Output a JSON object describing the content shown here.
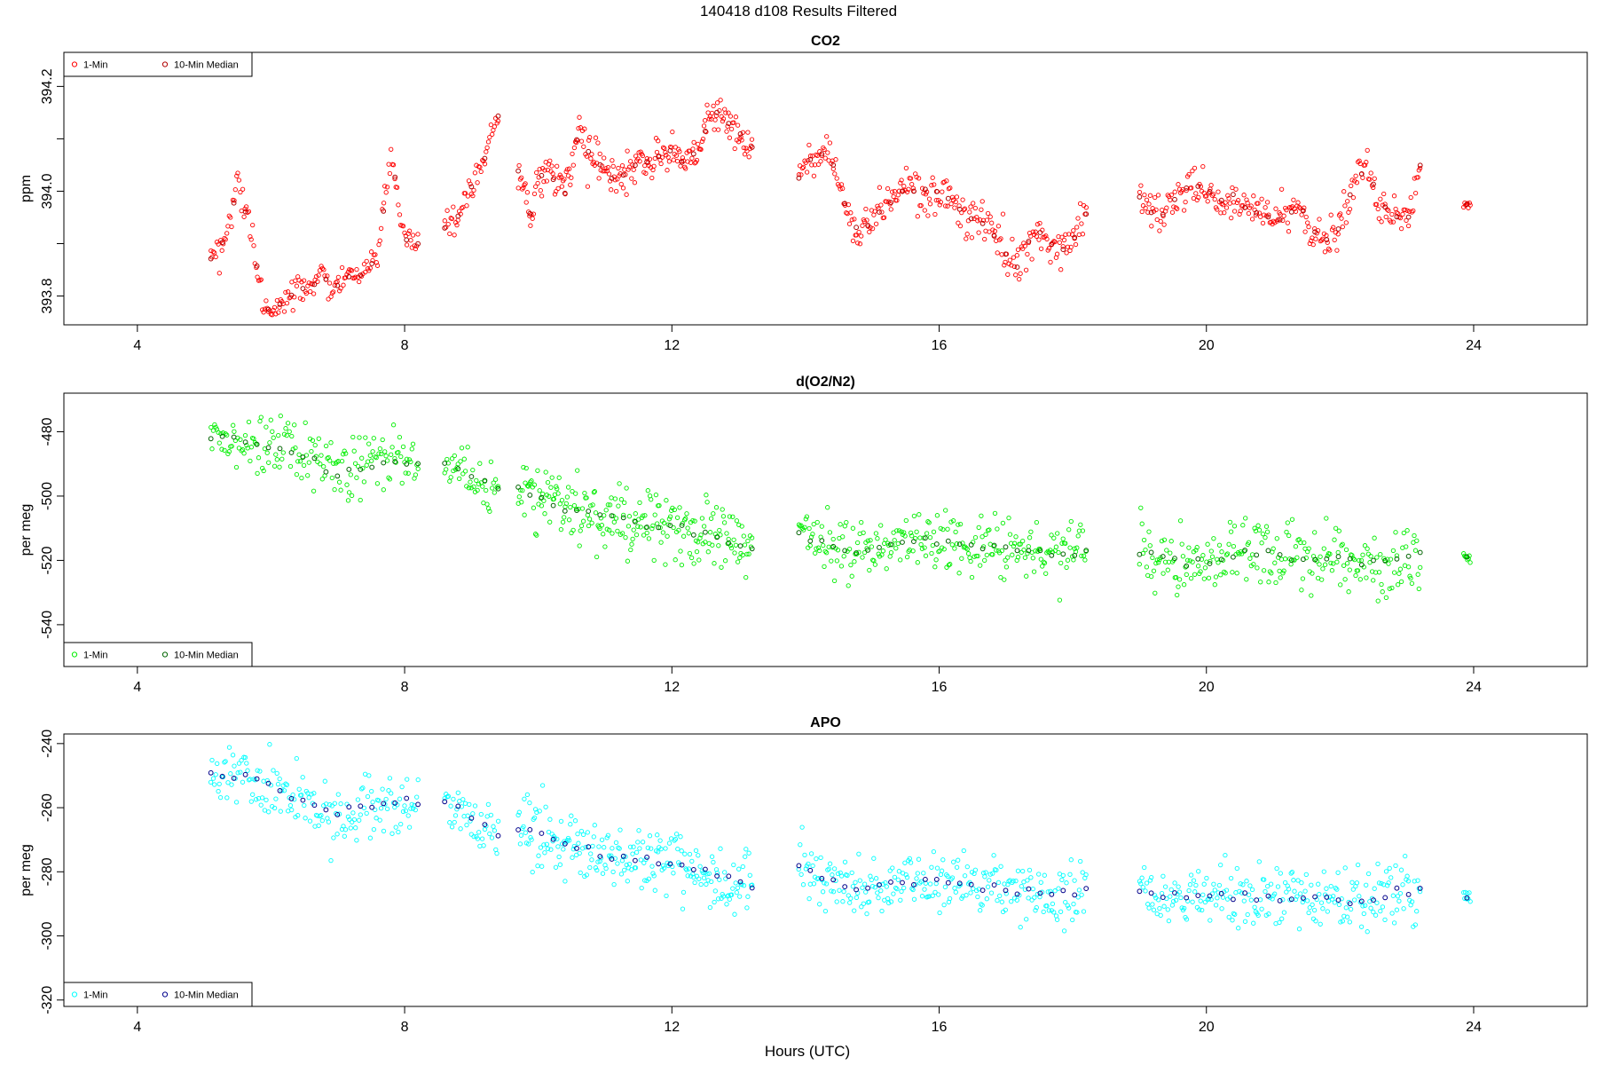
{
  "figure": {
    "title": "140418   d108   Results Filtered",
    "xlabel": "Hours (UTC)"
  },
  "chart_data": [
    {
      "type": "scatter",
      "title": "CO2",
      "ylabel": "ppm",
      "xlim": [
        2.9,
        25.7
      ],
      "ylim": [
        393.745,
        394.265
      ],
      "x_ticks": [
        4,
        8,
        12,
        16,
        20,
        24
      ],
      "x_tick_labels": [
        "4",
        "8",
        "12",
        "16",
        "20",
        "24"
      ],
      "y_ticks": [
        393.8,
        393.9,
        394.0,
        394.1,
        394.2
      ],
      "y_tick_labels": [
        "393.8",
        "",
        "394.0",
        "",
        "394.2"
      ],
      "legend": {
        "position": "top-left",
        "entries": [
          "1-Min",
          "10-Min Median"
        ]
      },
      "series": [
        {
          "name": "1-Min",
          "color": "#ff0000"
        },
        {
          "name": "10-Min Median",
          "color": "#b00000"
        }
      ],
      "segments": [
        {
          "x": [
            5.1,
            8.2
          ],
          "points": [
            [
              5.1,
              393.87
            ],
            [
              5.25,
              393.89
            ],
            [
              5.4,
              393.95
            ],
            [
              5.5,
              394.02
            ],
            [
              5.6,
              393.97
            ],
            [
              5.7,
              393.93
            ],
            [
              5.8,
              393.85
            ],
            [
              5.9,
              393.79
            ],
            [
              6.0,
              393.77
            ],
            [
              6.2,
              393.79
            ],
            [
              6.4,
              393.81
            ],
            [
              6.6,
              393.82
            ],
            [
              6.8,
              393.84
            ],
            [
              6.9,
              393.8
            ],
            [
              7.0,
              393.82
            ],
            [
              7.2,
              393.84
            ],
            [
              7.4,
              393.84
            ],
            [
              7.6,
              393.88
            ],
            [
              7.7,
              393.98
            ],
            [
              7.8,
              394.08
            ],
            [
              7.9,
              393.98
            ],
            [
              8.0,
              393.91
            ],
            [
              8.2,
              393.9
            ]
          ],
          "noise": 0.012,
          "n": 170
        },
        {
          "x": [
            8.6,
            9.4
          ],
          "points": [
            [
              8.6,
              393.93
            ],
            [
              8.8,
              393.95
            ],
            [
              9.0,
              394.01
            ],
            [
              9.2,
              394.06
            ],
            [
              9.4,
              394.14
            ]
          ],
          "noise": 0.012,
          "n": 45
        },
        {
          "x": [
            9.7,
            13.2
          ],
          "points": [
            [
              9.7,
              394.04
            ],
            [
              9.9,
              393.95
            ],
            [
              10.0,
              394.03
            ],
            [
              10.2,
              394.03
            ],
            [
              10.4,
              394.0
            ],
            [
              10.6,
              394.11
            ],
            [
              10.8,
              394.07
            ],
            [
              11.0,
              394.04
            ],
            [
              11.2,
              394.02
            ],
            [
              11.4,
              394.04
            ],
            [
              11.6,
              394.06
            ],
            [
              11.8,
              394.07
            ],
            [
              12.0,
              394.08
            ],
            [
              12.2,
              394.05
            ],
            [
              12.4,
              394.08
            ],
            [
              12.6,
              394.15
            ],
            [
              12.8,
              394.14
            ],
            [
              13.0,
              394.11
            ],
            [
              13.2,
              394.08
            ]
          ],
          "noise": 0.018,
          "n": 230
        },
        {
          "x": [
            13.9,
            18.2
          ],
          "points": [
            [
              13.9,
              394.03
            ],
            [
              14.0,
              394.05
            ],
            [
              14.2,
              394.08
            ],
            [
              14.4,
              394.06
            ],
            [
              14.6,
              393.97
            ],
            [
              14.8,
              393.92
            ],
            [
              15.0,
              393.95
            ],
            [
              15.2,
              393.97
            ],
            [
              15.4,
              394.0
            ],
            [
              15.6,
              394.0
            ],
            [
              15.8,
              394.0
            ],
            [
              16.0,
              394.0
            ],
            [
              16.2,
              393.98
            ],
            [
              16.4,
              393.95
            ],
            [
              16.6,
              393.95
            ],
            [
              16.8,
              393.92
            ],
            [
              17.0,
              393.88
            ],
            [
              17.2,
              393.85
            ],
            [
              17.4,
              393.93
            ],
            [
              17.6,
              393.91
            ],
            [
              17.8,
              393.89
            ],
            [
              18.0,
              393.9
            ],
            [
              18.2,
              393.96
            ]
          ],
          "noise": 0.018,
          "n": 250
        },
        {
          "x": [
            19.0,
            23.2
          ],
          "points": [
            [
              19.0,
              393.99
            ],
            [
              19.2,
              393.96
            ],
            [
              19.4,
              393.95
            ],
            [
              19.6,
              394.0
            ],
            [
              19.8,
              394.01
            ],
            [
              20.0,
              394.0
            ],
            [
              20.2,
              393.98
            ],
            [
              20.4,
              393.99
            ],
            [
              20.6,
              393.97
            ],
            [
              20.8,
              393.96
            ],
            [
              21.0,
              393.95
            ],
            [
              21.2,
              393.95
            ],
            [
              21.4,
              393.97
            ],
            [
              21.6,
              393.92
            ],
            [
              21.8,
              393.91
            ],
            [
              22.0,
              393.93
            ],
            [
              22.2,
              394.01
            ],
            [
              22.4,
              394.05
            ],
            [
              22.6,
              393.97
            ],
            [
              22.8,
              393.96
            ],
            [
              23.0,
              393.94
            ],
            [
              23.2,
              394.05
            ]
          ],
          "noise": 0.018,
          "n": 240
        },
        {
          "x": [
            23.85,
            23.95
          ],
          "points": [
            [
              23.85,
              393.975
            ],
            [
              23.95,
              393.975
            ]
          ],
          "noise": 0.003,
          "n": 8
        }
      ]
    },
    {
      "type": "scatter",
      "title": "d(O2/N2)",
      "ylabel": "per meg",
      "xlim": [
        2.9,
        25.7
      ],
      "ylim": [
        -553,
        -468
      ],
      "x_ticks": [
        4,
        8,
        12,
        16,
        20,
        24
      ],
      "x_tick_labels": [
        "4",
        "8",
        "12",
        "16",
        "20",
        "24"
      ],
      "y_ticks": [
        -480,
        -500,
        -520,
        -540
      ],
      "y_tick_labels": [
        "-480",
        "-500",
        "-520",
        "-540"
      ],
      "legend": {
        "position": "bottom-left",
        "entries": [
          "1-Min",
          "10-Min Median"
        ]
      },
      "series": [
        {
          "name": "1-Min",
          "color": "#00ee00"
        },
        {
          "name": "10-Min Median",
          "color": "#006400"
        }
      ],
      "segments": [
        {
          "x": [
            5.1,
            8.2
          ],
          "points": [
            [
              5.1,
              -481
            ],
            [
              5.5,
              -482
            ],
            [
              6.0,
              -486
            ],
            [
              6.5,
              -488
            ],
            [
              7.0,
              -493
            ],
            [
              7.5,
              -490
            ],
            [
              8.2,
              -490
            ]
          ],
          "noise": 4.5,
          "n": 170
        },
        {
          "x": [
            8.6,
            9.4
          ],
          "points": [
            [
              8.6,
              -490
            ],
            [
              9.0,
              -494
            ],
            [
              9.4,
              -498
            ]
          ],
          "noise": 4.0,
          "n": 45
        },
        {
          "x": [
            9.7,
            13.2
          ],
          "points": [
            [
              9.7,
              -498
            ],
            [
              10.5,
              -505
            ],
            [
              11.0,
              -507
            ],
            [
              12.0,
              -510
            ],
            [
              12.5,
              -512
            ],
            [
              13.2,
              -516
            ]
          ],
          "noise": 5.0,
          "n": 230
        },
        {
          "x": [
            13.9,
            18.2
          ],
          "points": [
            [
              13.9,
              -512
            ],
            [
              14.6,
              -517
            ],
            [
              15.5,
              -514
            ],
            [
              16.5,
              -515
            ],
            [
              17.5,
              -518
            ],
            [
              18.2,
              -517
            ]
          ],
          "noise": 4.5,
          "n": 250
        },
        {
          "x": [
            19.0,
            23.2
          ],
          "points": [
            [
              19.0,
              -518
            ],
            [
              19.8,
              -521
            ],
            [
              20.5,
              -517
            ],
            [
              21.5,
              -519
            ],
            [
              22.3,
              -521
            ],
            [
              23.2,
              -518
            ]
          ],
          "noise": 5.0,
          "n": 240
        },
        {
          "x": [
            23.85,
            23.95
          ],
          "points": [
            [
              23.85,
              -519
            ],
            [
              23.95,
              -519
            ]
          ],
          "noise": 0.8,
          "n": 8
        }
      ]
    },
    {
      "type": "scatter",
      "title": "APO",
      "ylabel": "per meg",
      "xlim": [
        2.9,
        25.7
      ],
      "ylim": [
        -322,
        -237
      ],
      "x_ticks": [
        4,
        8,
        12,
        16,
        20,
        24
      ],
      "x_tick_labels": [
        "4",
        "8",
        "12",
        "16",
        "20",
        "24"
      ],
      "y_ticks": [
        -240,
        -260,
        -280,
        -300,
        -320
      ],
      "y_tick_labels": [
        "-240",
        "-260",
        "-280",
        "-300",
        "-320"
      ],
      "legend": {
        "position": "bottom-left",
        "entries": [
          "1-Min",
          "10-Min Median"
        ]
      },
      "series": [
        {
          "name": "1-Min",
          "color": "#00ffff"
        },
        {
          "name": "10-Min Median",
          "color": "#00008b"
        }
      ],
      "segments": [
        {
          "x": [
            5.1,
            8.2
          ],
          "points": [
            [
              5.1,
              -249
            ],
            [
              5.5,
              -250
            ],
            [
              6.0,
              -254
            ],
            [
              6.5,
              -257
            ],
            [
              7.0,
              -262
            ],
            [
              7.5,
              -259
            ],
            [
              8.2,
              -258
            ]
          ],
          "noise": 4.5,
          "n": 170
        },
        {
          "x": [
            8.6,
            9.4
          ],
          "points": [
            [
              8.6,
              -258
            ],
            [
              9.0,
              -263
            ],
            [
              9.4,
              -268
            ]
          ],
          "noise": 4.0,
          "n": 45
        },
        {
          "x": [
            9.7,
            13.2
          ],
          "points": [
            [
              9.7,
              -266
            ],
            [
              10.5,
              -272
            ],
            [
              11.0,
              -275
            ],
            [
              12.0,
              -278
            ],
            [
              12.5,
              -280
            ],
            [
              13.2,
              -284
            ]
          ],
          "noise": 5.0,
          "n": 230
        },
        {
          "x": [
            13.9,
            18.2
          ],
          "points": [
            [
              13.9,
              -279
            ],
            [
              14.6,
              -285
            ],
            [
              15.5,
              -283
            ],
            [
              16.5,
              -284
            ],
            [
              17.5,
              -287
            ],
            [
              18.2,
              -286
            ]
          ],
          "noise": 4.5,
          "n": 250
        },
        {
          "x": [
            19.0,
            23.2
          ],
          "points": [
            [
              19.0,
              -285
            ],
            [
              19.8,
              -289
            ],
            [
              20.5,
              -287
            ],
            [
              21.5,
              -289
            ],
            [
              22.3,
              -289
            ],
            [
              23.2,
              -285
            ]
          ],
          "noise": 5.0,
          "n": 240
        },
        {
          "x": [
            23.85,
            23.95
          ],
          "points": [
            [
              23.85,
              -288
            ],
            [
              23.95,
              -288
            ]
          ],
          "noise": 0.8,
          "n": 8
        }
      ]
    }
  ]
}
